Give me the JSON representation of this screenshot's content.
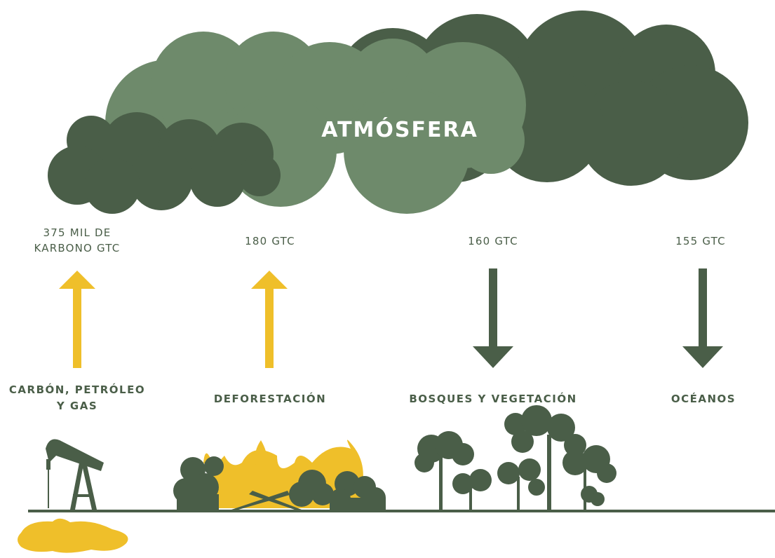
{
  "title": "ATMÓSFERA",
  "flows": [
    {
      "amount": [
        "375 MIL DE",
        "KARBONO GTC"
      ],
      "label": [
        "CARBÓN, PETRÓLEO",
        "Y GAS"
      ]
    },
    {
      "amount": [
        "180 GTC"
      ],
      "label": [
        "DEFORESTACIÓN"
      ]
    },
    {
      "amount": [
        "160 GTC"
      ],
      "label": [
        "BOSQUES Y VEGETACIÓN"
      ]
    },
    {
      "amount": [
        "155 GTC"
      ],
      "label": [
        "OCÉANOS"
      ]
    }
  ]
}
